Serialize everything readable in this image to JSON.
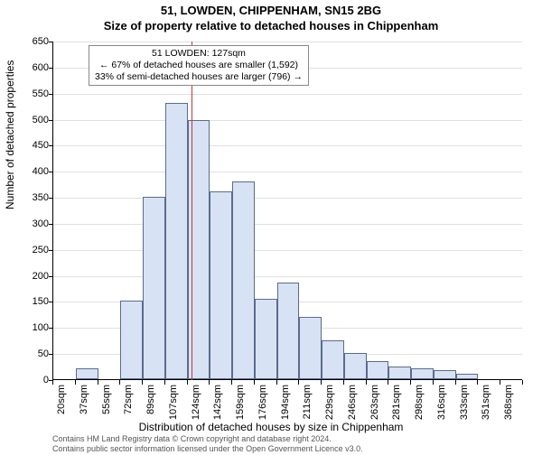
{
  "titles": {
    "line1": "51, LOWDEN, CHIPPENHAM, SN15 2BG",
    "line2": "Size of property relative to detached houses in Chippenham"
  },
  "axes": {
    "ylabel": "Number of detached properties",
    "xlabel": "Distribution of detached houses by size in Chippenham",
    "ymin": 0,
    "ymax": 650,
    "ytick_step": 50,
    "xtick_labels": [
      "20sqm",
      "37sqm",
      "55sqm",
      "72sqm",
      "89sqm",
      "107sqm",
      "124sqm",
      "142sqm",
      "159sqm",
      "176sqm",
      "194sqm",
      "211sqm",
      "229sqm",
      "246sqm",
      "263sqm",
      "281sqm",
      "298sqm",
      "316sqm",
      "333sqm",
      "351sqm",
      "368sqm"
    ],
    "grid_color": "#e0e0e0",
    "tick_fontsize": 11,
    "label_fontsize": 12
  },
  "histogram": {
    "bar_fill": "#d7e2f4",
    "bar_stroke": "#5b6b8c",
    "bar_count": 21,
    "values": [
      0,
      20,
      0,
      150,
      350,
      530,
      498,
      360,
      380,
      155,
      185,
      120,
      75,
      50,
      35,
      25,
      20,
      18,
      10,
      0,
      0
    ]
  },
  "reference": {
    "line_color": "#cc3333",
    "x_value_sqm": 127,
    "box": {
      "line1": "51 LOWDEN: 127sqm",
      "line2": "← 67% of detached houses are smaller (1,592)",
      "line3": "33% of semi-detached houses are larger (796) →"
    }
  },
  "footer": {
    "line1": "Contains HM Land Registry data © Crown copyright and database right 2024.",
    "line2": "Contains public sector information licensed under the Open Government Licence v3.0."
  },
  "style": {
    "background": "#ffffff",
    "title_fontsize": 13,
    "annot_fontsize": 10.5,
    "footer_fontsize": 9
  }
}
